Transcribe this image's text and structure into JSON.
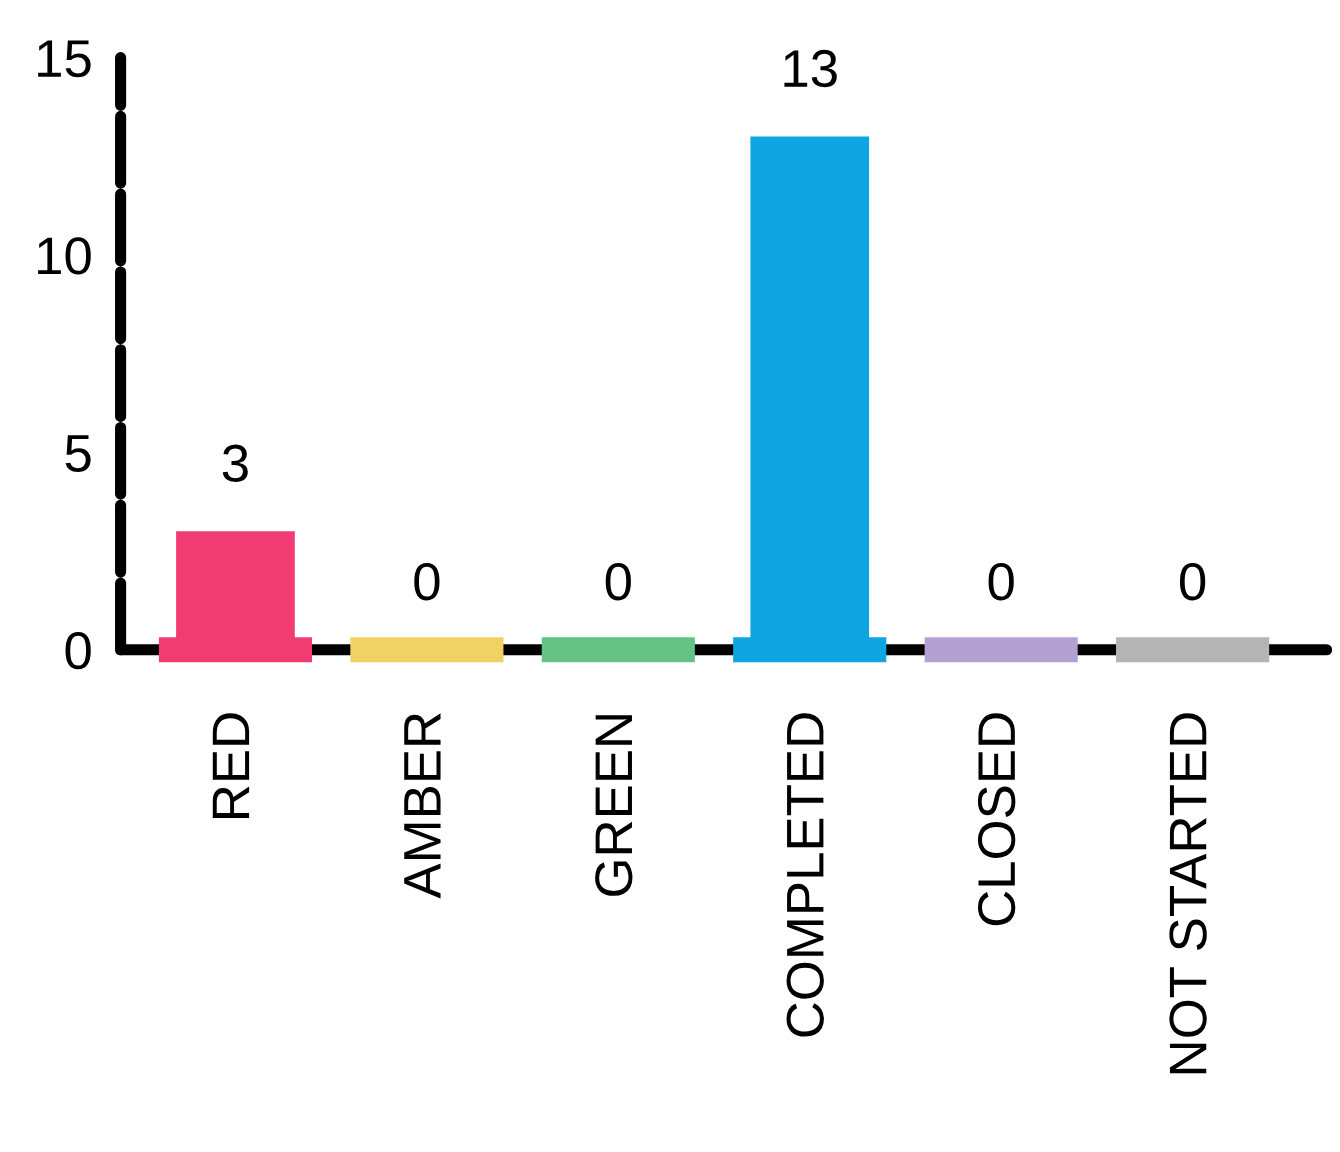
{
  "chart_data": {
    "type": "bar",
    "categories": [
      "RED",
      "AMBER",
      "GREEN",
      "COMPLETED",
      "CLOSED",
      "NOT STARTED"
    ],
    "values": [
      3,
      0,
      0,
      13,
      0,
      0
    ],
    "colors": [
      "#f03c73",
      "#f0d264",
      "#64c382",
      "#0fa5e1",
      "#b4a0d2",
      "#b4b4b4"
    ],
    "ylim": [
      0,
      15
    ],
    "yticks": [
      0,
      5,
      10,
      15
    ],
    "data_labels": true,
    "grid": false,
    "legend": false
  }
}
